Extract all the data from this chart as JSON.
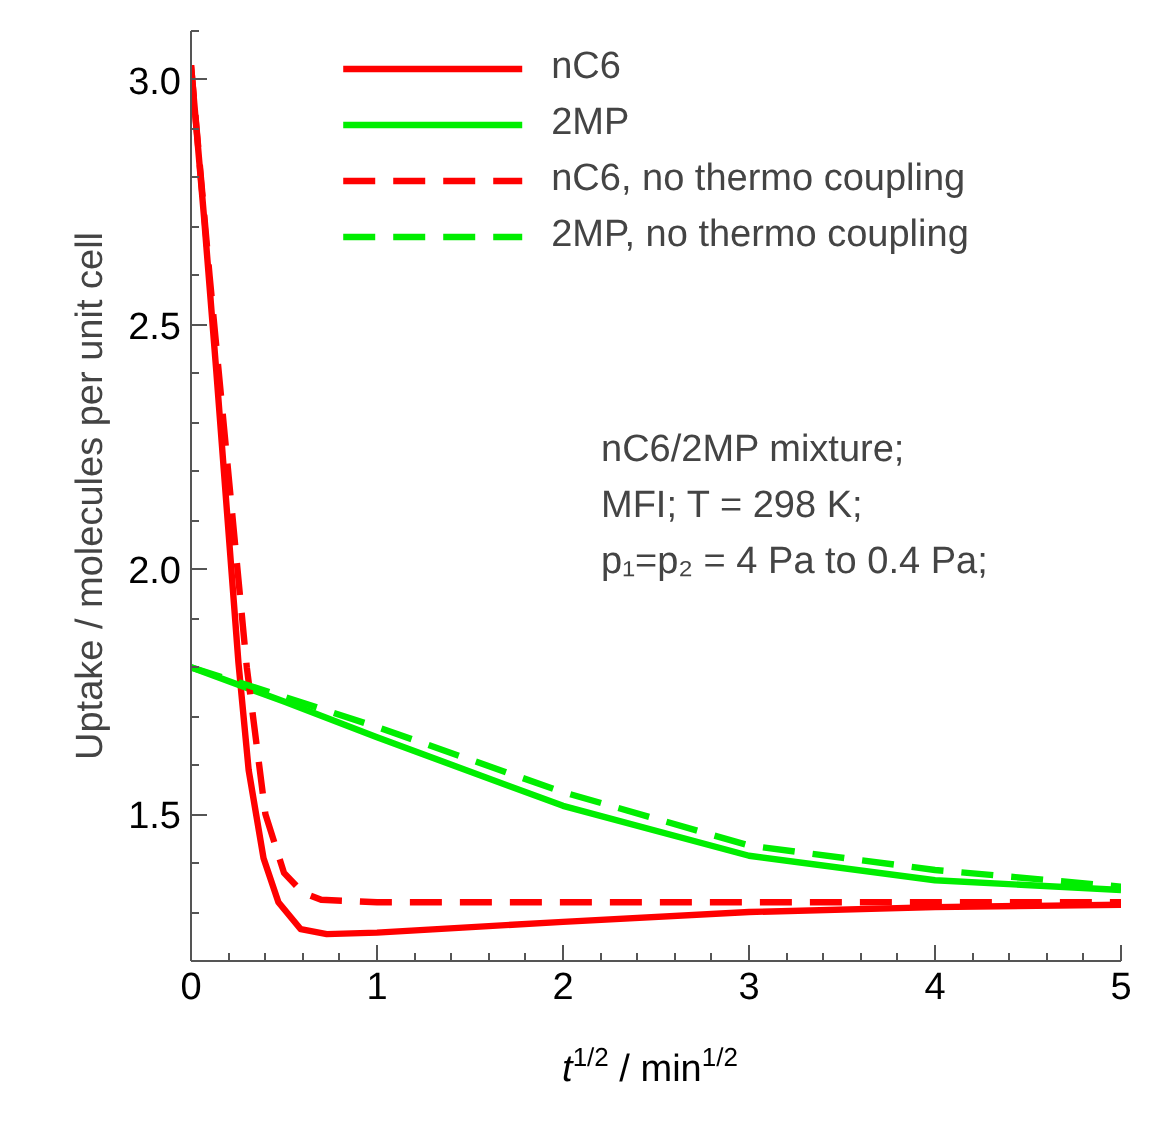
{
  "chart_data": {
    "type": "line",
    "xlabel": "t$^{1/2}$ / min$^{1/2}$",
    "ylabel": "Uptake / molecules per unit cell",
    "xlim": [
      0,
      5
    ],
    "ylim": [
      1.2,
      3.1
    ],
    "xticks": [
      0,
      1,
      2,
      3,
      4,
      5
    ],
    "yticks": [
      1.5,
      {
        "value": 2,
        "label": "2.0"
      },
      2.5,
      {
        "value": 3,
        "label": "3.0"
      }
    ],
    "grid": false,
    "legend": "top",
    "annotations": [
      "nC6/2MP mixture;",
      "MFI; T  = 298 K;",
      "p₁=p₂ = 4 Pa to 0.4 Pa;"
    ],
    "series": [
      {
        "name": "nC6",
        "color": "#ff0000",
        "line_style": "solid",
        "x": [
          0,
          0.07,
          0.135,
          0.195,
          0.255,
          0.31,
          0.39,
          0.47,
          0.59,
          0.73,
          1,
          2,
          3,
          4,
          5
        ],
        "values": [
          3.03,
          2.72,
          2.41,
          2.11,
          1.81,
          1.59,
          1.41,
          1.32,
          1.265,
          1.255,
          1.258,
          1.28,
          1.3,
          1.31,
          1.315
        ]
      },
      {
        "name": "2MP",
        "color": "#00ee00",
        "line_style": "solid",
        "x": [
          0,
          0.5,
          1,
          2,
          3,
          4,
          5
        ],
        "values": [
          1.8,
          1.73,
          1.657,
          1.517,
          1.415,
          1.365,
          1.345
        ]
      },
      {
        "name": "nC6, no thermo coupling",
        "color": "#ff0000",
        "line_style": "dashed",
        "x": [
          0,
          0.1,
          0.2,
          0.3,
          0.4,
          0.5,
          0.6,
          0.7,
          1,
          2,
          3,
          4,
          5
        ],
        "values": [
          3.03,
          2.6,
          2.2,
          1.8,
          1.5,
          1.38,
          1.34,
          1.325,
          1.32,
          1.32,
          1.32,
          1.32,
          1.32
        ]
      },
      {
        "name": "2MP, no thermo coupling",
        "color": "#00ee00",
        "line_style": "dashed",
        "x": [
          0,
          0.5,
          1,
          2,
          3,
          4,
          5
        ],
        "values": [
          1.8,
          1.74,
          1.678,
          1.545,
          1.436,
          1.386,
          1.352
        ]
      }
    ]
  }
}
